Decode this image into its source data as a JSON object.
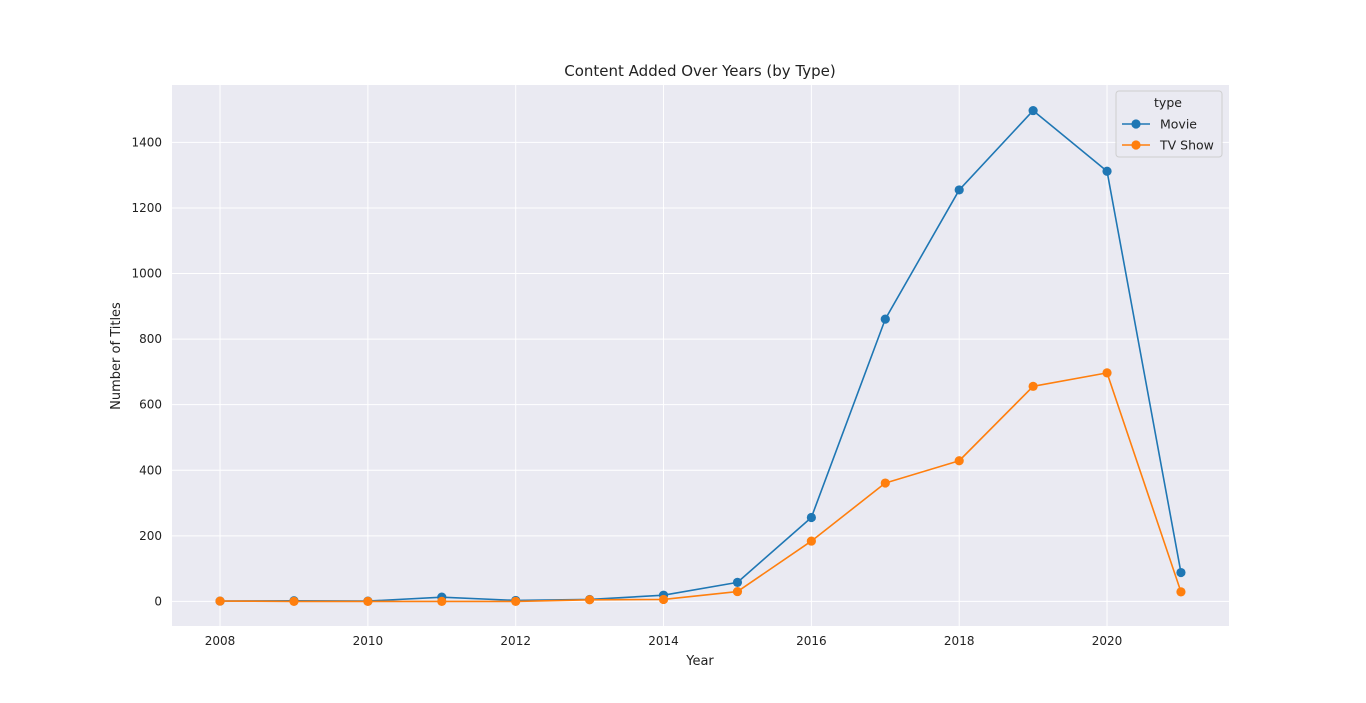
{
  "chart_data": {
    "type": "line",
    "title": "Content Added Over Years (by Type)",
    "xlabel": "Year",
    "ylabel": "Number of Titles",
    "x": [
      2008,
      2009,
      2010,
      2011,
      2012,
      2013,
      2014,
      2015,
      2016,
      2017,
      2018,
      2019,
      2020,
      2021
    ],
    "xlim": [
      2007.35,
      2021.65
    ],
    "ylim": [
      -75,
      1575
    ],
    "xticks": [
      2008,
      2010,
      2012,
      2014,
      2016,
      2018,
      2020
    ],
    "yticks": [
      0,
      200,
      400,
      600,
      800,
      1000,
      1200,
      1400
    ],
    "grid": true,
    "legend": {
      "title": "type",
      "placement": "top-right"
    },
    "series": [
      {
        "name": "Movie",
        "color": "#1f77b4",
        "values": [
          1,
          2,
          1,
          13,
          3,
          6,
          19,
          58,
          256,
          861,
          1255,
          1497,
          1312,
          88
        ]
      },
      {
        "name": "TV Show",
        "color": "#ff7f0e",
        "values": [
          1,
          0,
          0,
          0,
          0,
          5,
          6,
          30,
          184,
          361,
          429,
          656,
          697,
          29
        ]
      }
    ]
  }
}
